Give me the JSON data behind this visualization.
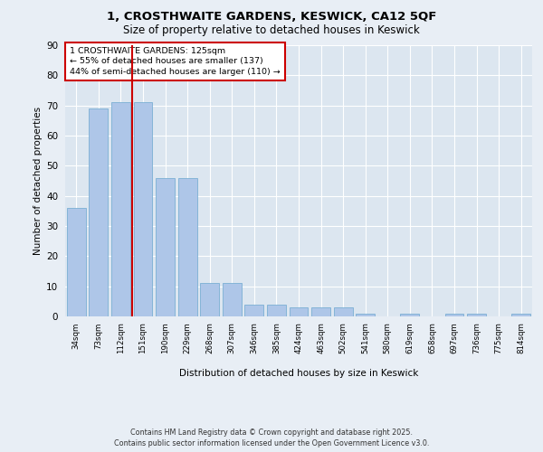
{
  "title_line1": "1, CROSTHWAITE GARDENS, KESWICK, CA12 5QF",
  "title_line2": "Size of property relative to detached houses in Keswick",
  "xlabel": "Distribution of detached houses by size in Keswick",
  "ylabel": "Number of detached properties",
  "bar_labels": [
    "34sqm",
    "73sqm",
    "112sqm",
    "151sqm",
    "190sqm",
    "229sqm",
    "268sqm",
    "307sqm",
    "346sqm",
    "385sqm",
    "424sqm",
    "463sqm",
    "502sqm",
    "541sqm",
    "580sqm",
    "619sqm",
    "658sqm",
    "697sqm",
    "736sqm",
    "775sqm",
    "814sqm"
  ],
  "bar_values": [
    36,
    69,
    71,
    71,
    46,
    46,
    11,
    11,
    4,
    4,
    3,
    3,
    3,
    1,
    0,
    1,
    0,
    1,
    1,
    0,
    1
  ],
  "bar_color": "#aec6e8",
  "bar_edge_color": "#7bafd4",
  "bg_color": "#e8eef5",
  "plot_bg_color": "#dce6f0",
  "grid_color": "#ffffff",
  "vline_x_index": 2.5,
  "vline_color": "#cc0000",
  "annotation_title": "1 CROSTHWAITE GARDENS: 125sqm",
  "annotation_line2": "← 55% of detached houses are smaller (137)",
  "annotation_line3": "44% of semi-detached houses are larger (110) →",
  "annotation_box_color": "#ffffff",
  "annotation_box_edge": "#cc0000",
  "footer": "Contains HM Land Registry data © Crown copyright and database right 2025.\nContains public sector information licensed under the Open Government Licence v3.0.",
  "ylim": [
    0,
    90
  ],
  "yticks": [
    0,
    10,
    20,
    30,
    40,
    50,
    60,
    70,
    80,
    90
  ]
}
